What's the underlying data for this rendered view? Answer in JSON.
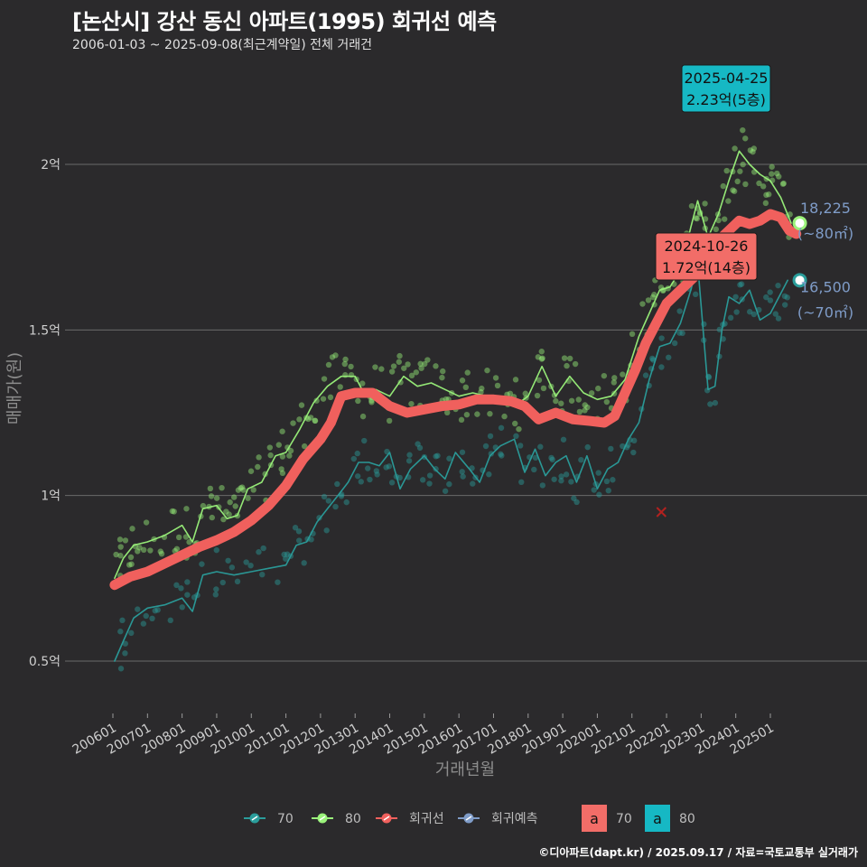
{
  "header": {
    "title": "[논산시] 강산 동신 아파트(1995) 회귀선 예측",
    "subtitle": "2006-01-03 ~ 2025-09-08(최근계약일) 전체 거래건"
  },
  "caption": "©디아파트(dapt.kr) / 2025.09.17 / 자료=국토교통부 실거래가",
  "colors": {
    "background": "#2b2a2c",
    "grid": "#6a6a6a",
    "s70": "#2a9d9b",
    "s80": "#9af27a",
    "regression": "#f0605d",
    "forecast": "#7f9cc8",
    "callout70": "#f26d68",
    "callout80": "#16b8c4"
  },
  "chart_data": {
    "type": "line",
    "xlabel": "거래년월",
    "ylabel": "매매가(원)",
    "x_ticks": [
      "200601",
      "200701",
      "200801",
      "200901",
      "201001",
      "201101",
      "201201",
      "201301",
      "201401",
      "201501",
      "201601",
      "201701",
      "201801",
      "201901",
      "202001",
      "202101",
      "202201",
      "202301",
      "202401",
      "202501"
    ],
    "y_ticks": [
      {
        "value": 5000,
        "label": "0.5억"
      },
      {
        "value": 10000,
        "label": "1억"
      },
      {
        "value": 15000,
        "label": "1.5억"
      },
      {
        "value": 20000,
        "label": "2억"
      }
    ],
    "ylim": [
      3500,
      23500
    ],
    "x_range": [
      2005.5,
      2026.3
    ],
    "y_unit": "만원",
    "series": [
      {
        "name": "70",
        "color": "#2a9d9b",
        "points": [
          [
            2006.05,
            5000
          ],
          [
            2006.3,
            5600
          ],
          [
            2006.6,
            6300
          ],
          [
            2007.0,
            6600
          ],
          [
            2007.5,
            6700
          ],
          [
            2008.0,
            6900
          ],
          [
            2008.3,
            6500
          ],
          [
            2008.6,
            7600
          ],
          [
            2009.0,
            7700
          ],
          [
            2009.5,
            7600
          ],
          [
            2010.0,
            7700
          ],
          [
            2010.5,
            7800
          ],
          [
            2011.0,
            7900
          ],
          [
            2011.3,
            8500
          ],
          [
            2011.6,
            8600
          ],
          [
            2011.9,
            9200
          ],
          [
            2012.2,
            9600
          ],
          [
            2012.5,
            10000
          ],
          [
            2012.8,
            10400
          ],
          [
            2013.1,
            11000
          ],
          [
            2013.4,
            11000
          ],
          [
            2013.7,
            10900
          ],
          [
            2014.0,
            11300
          ],
          [
            2014.3,
            10200
          ],
          [
            2014.6,
            10800
          ],
          [
            2015.0,
            11200
          ],
          [
            2015.3,
            10800
          ],
          [
            2015.6,
            10500
          ],
          [
            2015.9,
            11300
          ],
          [
            2016.3,
            10800
          ],
          [
            2016.6,
            10400
          ],
          [
            2016.9,
            11200
          ],
          [
            2017.2,
            11500
          ],
          [
            2017.6,
            11700
          ],
          [
            2017.9,
            10700
          ],
          [
            2018.2,
            11400
          ],
          [
            2018.5,
            10600
          ],
          [
            2018.8,
            11000
          ],
          [
            2019.1,
            11200
          ],
          [
            2019.4,
            10400
          ],
          [
            2019.7,
            11200
          ],
          [
            2020.0,
            10200
          ],
          [
            2020.3,
            10800
          ],
          [
            2020.6,
            11000
          ],
          [
            2020.9,
            11700
          ],
          [
            2021.2,
            12200
          ],
          [
            2021.5,
            13500
          ],
          [
            2021.8,
            14500
          ],
          [
            2022.1,
            14600
          ],
          [
            2022.4,
            15200
          ],
          [
            2022.7,
            16200
          ],
          [
            2022.9,
            17000
          ],
          [
            2023.2,
            13200
          ],
          [
            2023.4,
            13300
          ],
          [
            2023.6,
            15000
          ],
          [
            2023.8,
            16000
          ],
          [
            2024.1,
            15800
          ],
          [
            2024.4,
            16200
          ],
          [
            2024.7,
            15300
          ],
          [
            2025.0,
            15500
          ],
          [
            2025.3,
            16100
          ],
          [
            2025.5,
            16500
          ]
        ]
      },
      {
        "name": "80",
        "color": "#9af27a",
        "points": [
          [
            2006.05,
            7500
          ],
          [
            2006.3,
            8100
          ],
          [
            2006.6,
            8500
          ],
          [
            2007.0,
            8600
          ],
          [
            2007.5,
            8800
          ],
          [
            2008.0,
            9100
          ],
          [
            2008.3,
            8600
          ],
          [
            2008.6,
            9600
          ],
          [
            2009.0,
            9700
          ],
          [
            2009.3,
            9300
          ],
          [
            2009.6,
            9400
          ],
          [
            2009.9,
            10200
          ],
          [
            2010.3,
            10400
          ],
          [
            2010.7,
            11200
          ],
          [
            2011.0,
            11300
          ],
          [
            2011.4,
            12000
          ],
          [
            2011.8,
            12800
          ],
          [
            2012.2,
            13300
          ],
          [
            2012.6,
            13600
          ],
          [
            2013.0,
            13600
          ],
          [
            2013.3,
            13000
          ],
          [
            2013.6,
            13200
          ],
          [
            2014.0,
            13000
          ],
          [
            2014.4,
            13600
          ],
          [
            2014.8,
            13300
          ],
          [
            2015.2,
            13400
          ],
          [
            2015.6,
            13200
          ],
          [
            2016.0,
            13000
          ],
          [
            2016.4,
            13100
          ],
          [
            2016.8,
            13000
          ],
          [
            2017.2,
            12800
          ],
          [
            2017.6,
            12700
          ],
          [
            2018.0,
            13000
          ],
          [
            2018.4,
            13900
          ],
          [
            2018.8,
            13000
          ],
          [
            2019.2,
            13600
          ],
          [
            2019.6,
            13100
          ],
          [
            2020.0,
            12900
          ],
          [
            2020.4,
            13000
          ],
          [
            2020.8,
            13500
          ],
          [
            2021.2,
            14800
          ],
          [
            2021.5,
            15500
          ],
          [
            2021.8,
            16200
          ],
          [
            2022.1,
            16300
          ],
          [
            2022.4,
            16800
          ],
          [
            2022.7,
            18100
          ],
          [
            2022.9,
            18900
          ],
          [
            2023.2,
            17800
          ],
          [
            2023.5,
            18500
          ],
          [
            2023.8,
            19500
          ],
          [
            2024.1,
            20400
          ],
          [
            2024.4,
            20000
          ],
          [
            2024.7,
            19700
          ],
          [
            2025.0,
            19500
          ],
          [
            2025.3,
            19000
          ],
          [
            2025.6,
            18225
          ]
        ]
      },
      {
        "name": "회귀선",
        "color": "#f0605d",
        "points": [
          [
            2006.05,
            7300
          ],
          [
            2006.5,
            7550
          ],
          [
            2007.0,
            7700
          ],
          [
            2007.5,
            7950
          ],
          [
            2008.0,
            8200
          ],
          [
            2008.5,
            8450
          ],
          [
            2009.0,
            8650
          ],
          [
            2009.5,
            8900
          ],
          [
            2010.0,
            9250
          ],
          [
            2010.5,
            9700
          ],
          [
            2011.0,
            10300
          ],
          [
            2011.5,
            11100
          ],
          [
            2012.0,
            11700
          ],
          [
            2012.3,
            12200
          ],
          [
            2012.6,
            13000
          ],
          [
            2013.0,
            13100
          ],
          [
            2013.5,
            13100
          ],
          [
            2014.0,
            12700
          ],
          [
            2014.5,
            12500
          ],
          [
            2015.0,
            12600
          ],
          [
            2015.5,
            12700
          ],
          [
            2016.0,
            12750
          ],
          [
            2016.5,
            12900
          ],
          [
            2017.0,
            12900
          ],
          [
            2017.5,
            12850
          ],
          [
            2017.9,
            12700
          ],
          [
            2018.3,
            12300
          ],
          [
            2018.8,
            12500
          ],
          [
            2019.3,
            12300
          ],
          [
            2019.8,
            12250
          ],
          [
            2020.2,
            12200
          ],
          [
            2020.5,
            12400
          ],
          [
            2020.8,
            13100
          ],
          [
            2021.1,
            13800
          ],
          [
            2021.4,
            14600
          ],
          [
            2021.7,
            15200
          ],
          [
            2022.0,
            15800
          ],
          [
            2022.3,
            16100
          ],
          [
            2022.6,
            16400
          ],
          [
            2022.9,
            16700
          ],
          [
            2023.2,
            17500
          ],
          [
            2023.5,
            17700
          ],
          [
            2023.8,
            18000
          ],
          [
            2024.1,
            18300
          ],
          [
            2024.4,
            18200
          ],
          [
            2024.7,
            18300
          ],
          [
            2025.0,
            18500
          ],
          [
            2025.3,
            18400
          ],
          [
            2025.55,
            18000
          ],
          [
            2025.75,
            17900
          ]
        ]
      }
    ],
    "forecast": {
      "name": "회귀예측",
      "color": "#7f9cc8"
    },
    "outlier": {
      "x": 2021.85,
      "y": 9500
    },
    "callouts": [
      {
        "series": "70",
        "date": "2024-10-26",
        "value_text": "1.72억(14층)",
        "x": 2024.82,
        "y": 17200,
        "box_x": 2024.0,
        "box_y": 17700
      },
      {
        "series": "80",
        "date": "2025-04-25",
        "value_text": "2.23억(5층)",
        "x": 2025.32,
        "y": 22300,
        "box_x": 2024.0,
        "box_y": 22900
      }
    ],
    "end_labels": [
      {
        "series": "80",
        "price": "18,225",
        "area": "(~80㎡)",
        "x": 2025.85,
        "y": 18225
      },
      {
        "series": "70",
        "price": "16,500",
        "area": "(~70㎡)",
        "x": 2025.85,
        "y": 16500
      }
    ],
    "legend": {
      "position": "bottom",
      "items": [
        "70",
        "80",
        "회귀선",
        "회귀예측"
      ],
      "text_keys": [
        "70",
        "80"
      ],
      "text_glyph": "a"
    }
  }
}
